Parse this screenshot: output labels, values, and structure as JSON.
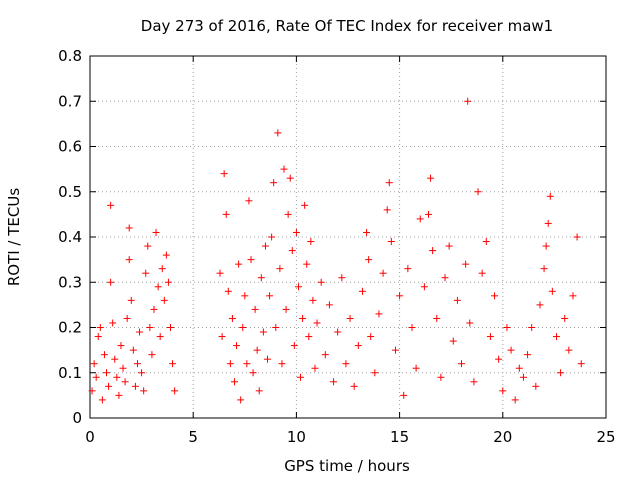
{
  "chart_data": {
    "type": "scatter",
    "title": "Day 273 of 2016, Rate Of TEC Index for receiver maw1",
    "xlabel": "GPS time / hours",
    "ylabel": "ROTI / TECUs",
    "xlim": [
      0,
      25
    ],
    "ylim": [
      0,
      0.8
    ],
    "xticks": [
      0,
      5,
      10,
      15,
      20,
      25
    ],
    "xtick_labels": [
      "0",
      "5",
      "10",
      "15",
      "20",
      "25"
    ],
    "yticks": [
      0,
      0.1,
      0.2,
      0.3,
      0.4,
      0.5,
      0.6,
      0.7,
      0.8
    ],
    "ytick_labels": [
      "0",
      "0.1",
      "0.2",
      "0.3",
      "0.4",
      "0.5",
      "0.6",
      "0.7",
      "0.8"
    ],
    "grid": true,
    "marker": "+",
    "marker_color": "#ff0000",
    "series": [
      {
        "name": "ROTI",
        "points": [
          [
            0.1,
            0.06
          ],
          [
            0.2,
            0.12
          ],
          [
            0.3,
            0.09
          ],
          [
            0.4,
            0.18
          ],
          [
            0.5,
            0.2
          ],
          [
            0.6,
            0.04
          ],
          [
            0.7,
            0.14
          ],
          [
            0.8,
            0.1
          ],
          [
            0.9,
            0.07
          ],
          [
            1.0,
            0.3
          ],
          [
            1.0,
            0.47
          ],
          [
            1.1,
            0.21
          ],
          [
            1.2,
            0.13
          ],
          [
            1.3,
            0.09
          ],
          [
            1.4,
            0.05
          ],
          [
            1.5,
            0.16
          ],
          [
            1.6,
            0.11
          ],
          [
            1.7,
            0.08
          ],
          [
            1.8,
            0.22
          ],
          [
            1.9,
            0.42
          ],
          [
            1.9,
            0.35
          ],
          [
            2.0,
            0.26
          ],
          [
            2.1,
            0.15
          ],
          [
            2.2,
            0.07
          ],
          [
            2.3,
            0.12
          ],
          [
            2.4,
            0.19
          ],
          [
            2.5,
            0.1
          ],
          [
            2.6,
            0.06
          ],
          [
            2.7,
            0.32
          ],
          [
            2.8,
            0.38
          ],
          [
            2.9,
            0.2
          ],
          [
            3.0,
            0.14
          ],
          [
            3.1,
            0.24
          ],
          [
            3.2,
            0.41
          ],
          [
            3.3,
            0.29
          ],
          [
            3.4,
            0.18
          ],
          [
            3.5,
            0.33
          ],
          [
            3.6,
            0.26
          ],
          [
            3.7,
            0.36
          ],
          [
            3.8,
            0.3
          ],
          [
            3.9,
            0.2
          ],
          [
            4.0,
            0.12
          ],
          [
            4.1,
            0.06
          ],
          [
            6.3,
            0.32
          ],
          [
            6.4,
            0.18
          ],
          [
            6.5,
            0.54
          ],
          [
            6.6,
            0.45
          ],
          [
            6.7,
            0.28
          ],
          [
            6.8,
            0.12
          ],
          [
            6.9,
            0.22
          ],
          [
            7.0,
            0.08
          ],
          [
            7.1,
            0.16
          ],
          [
            7.2,
            0.34
          ],
          [
            7.3,
            0.04
          ],
          [
            7.4,
            0.2
          ],
          [
            7.5,
            0.27
          ],
          [
            7.6,
            0.12
          ],
          [
            7.7,
            0.48
          ],
          [
            7.8,
            0.35
          ],
          [
            7.9,
            0.1
          ],
          [
            8.0,
            0.24
          ],
          [
            8.1,
            0.15
          ],
          [
            8.2,
            0.06
          ],
          [
            8.3,
            0.31
          ],
          [
            8.4,
            0.19
          ],
          [
            8.5,
            0.38
          ],
          [
            8.6,
            0.13
          ],
          [
            8.7,
            0.27
          ],
          [
            8.8,
            0.4
          ],
          [
            8.9,
            0.52
          ],
          [
            9.0,
            0.2
          ],
          [
            9.1,
            0.63
          ],
          [
            9.2,
            0.33
          ],
          [
            9.3,
            0.12
          ],
          [
            9.4,
            0.55
          ],
          [
            9.5,
            0.24
          ],
          [
            9.6,
            0.45
          ],
          [
            9.7,
            0.53
          ],
          [
            9.8,
            0.37
          ],
          [
            9.9,
            0.16
          ],
          [
            10.0,
            0.41
          ],
          [
            10.1,
            0.29
          ],
          [
            10.2,
            0.09
          ],
          [
            10.3,
            0.22
          ],
          [
            10.4,
            0.47
          ],
          [
            10.5,
            0.34
          ],
          [
            10.6,
            0.18
          ],
          [
            10.7,
            0.39
          ],
          [
            10.8,
            0.26
          ],
          [
            10.9,
            0.11
          ],
          [
            11.0,
            0.21
          ],
          [
            11.2,
            0.3
          ],
          [
            11.4,
            0.14
          ],
          [
            11.6,
            0.25
          ],
          [
            11.8,
            0.08
          ],
          [
            12.0,
            0.19
          ],
          [
            12.2,
            0.31
          ],
          [
            12.4,
            0.12
          ],
          [
            12.6,
            0.22
          ],
          [
            12.8,
            0.07
          ],
          [
            13.0,
            0.16
          ],
          [
            13.2,
            0.28
          ],
          [
            13.4,
            0.41
          ],
          [
            13.5,
            0.35
          ],
          [
            13.6,
            0.18
          ],
          [
            13.8,
            0.1
          ],
          [
            14.0,
            0.23
          ],
          [
            14.2,
            0.32
          ],
          [
            14.4,
            0.46
          ],
          [
            14.5,
            0.52
          ],
          [
            14.6,
            0.39
          ],
          [
            14.8,
            0.15
          ],
          [
            15.0,
            0.27
          ],
          [
            15.2,
            0.05
          ],
          [
            15.4,
            0.33
          ],
          [
            15.6,
            0.2
          ],
          [
            15.8,
            0.11
          ],
          [
            16.0,
            0.44
          ],
          [
            16.2,
            0.29
          ],
          [
            16.4,
            0.45
          ],
          [
            16.5,
            0.53
          ],
          [
            16.6,
            0.37
          ],
          [
            16.8,
            0.22
          ],
          [
            17.0,
            0.09
          ],
          [
            17.2,
            0.31
          ],
          [
            17.4,
            0.38
          ],
          [
            17.6,
            0.17
          ],
          [
            17.8,
            0.26
          ],
          [
            18.0,
            0.12
          ],
          [
            18.2,
            0.34
          ],
          [
            18.3,
            0.7
          ],
          [
            18.4,
            0.21
          ],
          [
            18.6,
            0.08
          ],
          [
            18.8,
            0.5
          ],
          [
            19.0,
            0.32
          ],
          [
            19.2,
            0.39
          ],
          [
            19.4,
            0.18
          ],
          [
            19.6,
            0.27
          ],
          [
            19.8,
            0.13
          ],
          [
            20.0,
            0.06
          ],
          [
            20.2,
            0.2
          ],
          [
            20.4,
            0.15
          ],
          [
            20.6,
            0.04
          ],
          [
            20.8,
            0.11
          ],
          [
            21.0,
            0.09
          ],
          [
            21.2,
            0.14
          ],
          [
            21.4,
            0.2
          ],
          [
            21.6,
            0.07
          ],
          [
            21.8,
            0.25
          ],
          [
            22.0,
            0.33
          ],
          [
            22.1,
            0.38
          ],
          [
            22.2,
            0.43
          ],
          [
            22.3,
            0.49
          ],
          [
            22.4,
            0.28
          ],
          [
            22.6,
            0.18
          ],
          [
            22.8,
            0.1
          ],
          [
            23.0,
            0.22
          ],
          [
            23.2,
            0.15
          ],
          [
            23.4,
            0.27
          ],
          [
            23.6,
            0.4
          ],
          [
            23.8,
            0.12
          ]
        ]
      }
    ]
  }
}
